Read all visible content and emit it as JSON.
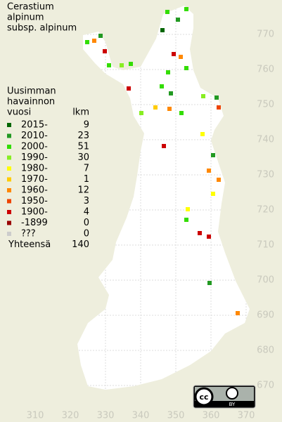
{
  "title": [
    "Cerastium",
    "alpinum",
    "subsp. alpinum"
  ],
  "legend": {
    "header": [
      "Uusimman",
      "havainnon",
      "vuosi"
    ],
    "count_header": "lkm",
    "rows": [
      {
        "label": "2015-",
        "count": 9,
        "color": "#006600"
      },
      {
        "label": "2010-",
        "count": 23,
        "color": "#229922"
      },
      {
        "label": "2000-",
        "count": 51,
        "color": "#33dd00"
      },
      {
        "label": "1990-",
        "count": 30,
        "color": "#88ee22"
      },
      {
        "label": "1980-",
        "count": 7,
        "color": "#ffff00"
      },
      {
        "label": "1970-",
        "count": 1,
        "color": "#ffcc00"
      },
      {
        "label": "1960-",
        "count": 12,
        "color": "#ff8800"
      },
      {
        "label": "1950-",
        "count": 3,
        "color": "#ee4400"
      },
      {
        "label": "1900-",
        "count": 4,
        "color": "#cc0000"
      },
      {
        "label": "-1899",
        "count": 0,
        "color": "#990000"
      },
      {
        "label": "???",
        "count": 0,
        "color": "#cccccc"
      }
    ],
    "total_label": "Yhteensä",
    "total": 140
  },
  "grid": {
    "y_labels": [
      770,
      760,
      750,
      740,
      730,
      720,
      710,
      700,
      690,
      680,
      670
    ],
    "x_labels": [
      310,
      320,
      330,
      340,
      350,
      360,
      370
    ]
  },
  "license": {
    "cc": "cc",
    "by": "BY"
  }
}
